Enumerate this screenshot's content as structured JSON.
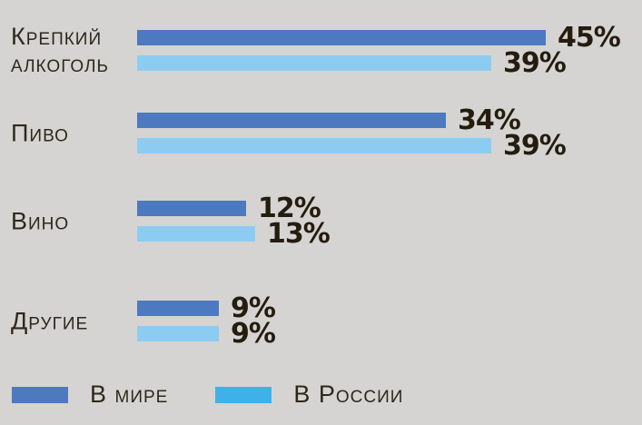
{
  "chart_data": {
    "type": "bar",
    "orientation": "horizontal",
    "title": "",
    "categories": [
      "Крепкий алкоголь",
      "Пиво",
      "Вино",
      "Другие"
    ],
    "series": [
      {
        "name": "В мире",
        "color": "#4c79bf",
        "values": [
          45,
          34,
          12,
          9
        ]
      },
      {
        "name": "В России",
        "color": "#8dccf2",
        "values": [
          39,
          39,
          13,
          9
        ]
      }
    ],
    "value_suffix": "%",
    "xlim": [
      0,
      100
    ],
    "grid": false,
    "legend_position": "bottom"
  },
  "legend": {
    "items": [
      {
        "label": "В мире",
        "color": "#4c79bf"
      },
      {
        "label": "В России",
        "color": "#3eb1ea"
      }
    ]
  },
  "colors": {
    "background": "#d5d4d2",
    "label_text": "#2e281c",
    "value_text": "#241c0e"
  }
}
